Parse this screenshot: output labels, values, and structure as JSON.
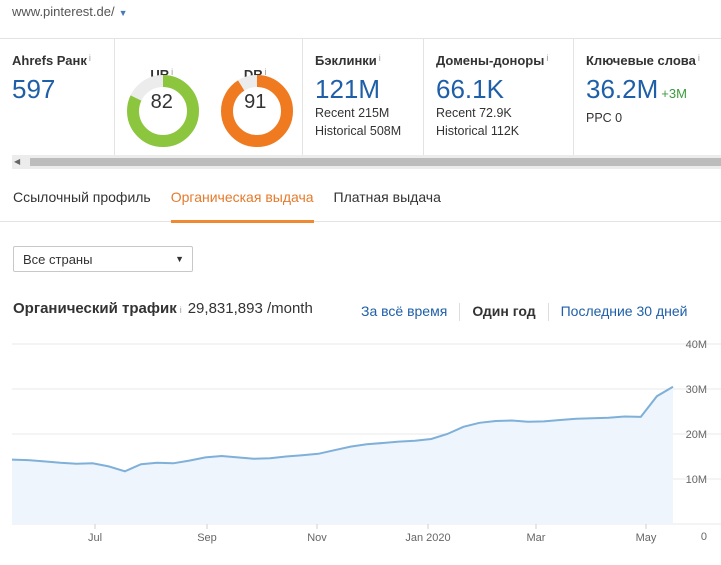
{
  "header": {
    "url": "www.pinterest.de/"
  },
  "metrics": {
    "rank": {
      "label": "Ahrefs Ранк",
      "info": "i",
      "value": "597"
    },
    "ur": {
      "label": "UR",
      "info": "i",
      "value": "82",
      "color": "#8cc63f"
    },
    "dr": {
      "label": "DR",
      "info": "i",
      "value": "91",
      "color": "#f07a1f"
    },
    "backlinks": {
      "label": "Бэклинки",
      "info": "i",
      "value": "121M",
      "recent": "Recent 215M",
      "historical": "Historical 508M"
    },
    "donors": {
      "label": "Домены-доноры",
      "info": "i",
      "value": "66.1K",
      "recent": "Recent 72.9K",
      "historical": "Historical 112K"
    },
    "keywords": {
      "label": "Ключевые слова",
      "info": "i",
      "value": "36.2M",
      "delta": "+3M",
      "ppc": "PPC 0"
    }
  },
  "tabs": [
    {
      "label": "Ссылочный профиль"
    },
    {
      "label": "Органическая выдача",
      "active": true
    },
    {
      "label": "Платная выдача"
    }
  ],
  "country_select": {
    "value": "Все страны"
  },
  "traffic": {
    "title": "Органический трафик",
    "info": "i",
    "value": "29,831,893 /month",
    "periods": [
      "За всё время",
      "Один год",
      "Последние 30 дней"
    ],
    "active_period": "Один год"
  },
  "chart_data": {
    "type": "area",
    "x_ticks": [
      "Jul",
      "Sep",
      "Nov",
      "Jan 2020",
      "Mar",
      "May"
    ],
    "y_ticks": [
      "40M",
      "30M",
      "20M",
      "10M",
      "0"
    ],
    "ylim": [
      0,
      40000000
    ],
    "line_color": "#7fb0d9",
    "fill_color": "#eef5fc",
    "series": [
      {
        "values": [
          14.3,
          14.2,
          13.9,
          13.6,
          13.4,
          13.5,
          12.8,
          11.7,
          13.3,
          13.6,
          13.5,
          14.1,
          14.8,
          15.1,
          14.8,
          14.5,
          14.6,
          15.0,
          15.3,
          15.6,
          16.4,
          17.2,
          17.7,
          18.0,
          18.3,
          18.5,
          18.9,
          20.0,
          21.6,
          22.5,
          22.9,
          23.0,
          22.7,
          22.8,
          23.1,
          23.4,
          23.5,
          23.6,
          23.9,
          23.8,
          28.4,
          30.5
        ]
      }
    ],
    "grid": true
  },
  "colors": {
    "accent": "#f08a32",
    "link": "#1e5fa8",
    "positive": "#3c9a3c"
  }
}
